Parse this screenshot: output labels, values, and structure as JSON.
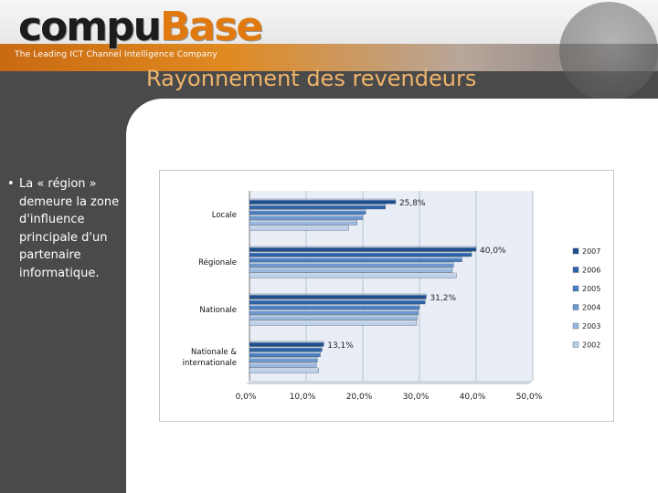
{
  "header": {
    "logo_main": "compu",
    "logo_accent": "Base",
    "tagline": "The Leading ICT Channel Intelligence Company"
  },
  "slide": {
    "title": "Rayonnement des revendeurs",
    "bullet": "La « région » demeure la zone d'influence principale d'un partenaire informatique."
  },
  "colors": {
    "accent_orange": "#e07a10",
    "title_color": "#f0b46b",
    "series": [
      "#1f4e8c",
      "#2d63a8",
      "#4a7fc1",
      "#6e99d0",
      "#9ab8df",
      "#bcd0ea"
    ]
  },
  "chart_data": {
    "type": "bar",
    "orientation": "horizontal",
    "categories": [
      "Locale",
      "Régionale",
      "Nationale",
      "Nationale & internationale"
    ],
    "series": [
      {
        "name": "2007",
        "values": [
          25.8,
          40.0,
          31.2,
          13.1
        ]
      },
      {
        "name": "2006",
        "values": [
          24.0,
          39.2,
          31.0,
          12.8
        ]
      },
      {
        "name": "2005",
        "values": [
          20.5,
          37.5,
          30.0,
          12.5
        ]
      },
      {
        "name": "2004",
        "values": [
          20.0,
          36.0,
          29.8,
          12.0
        ]
      },
      {
        "name": "2003",
        "values": [
          19.0,
          35.8,
          29.6,
          11.8
        ]
      },
      {
        "name": "2002",
        "values": [
          17.5,
          36.5,
          29.5,
          12.2
        ]
      }
    ],
    "data_labels": [
      "25,8%",
      "40,0%",
      "31,2%",
      "13,1%"
    ],
    "x_ticks": [
      "0,0%",
      "10,0%",
      "20,0%",
      "30,0%",
      "40,0%",
      "50,0%"
    ],
    "xlim": [
      0,
      50
    ],
    "grid": true,
    "legend_position": "right"
  }
}
